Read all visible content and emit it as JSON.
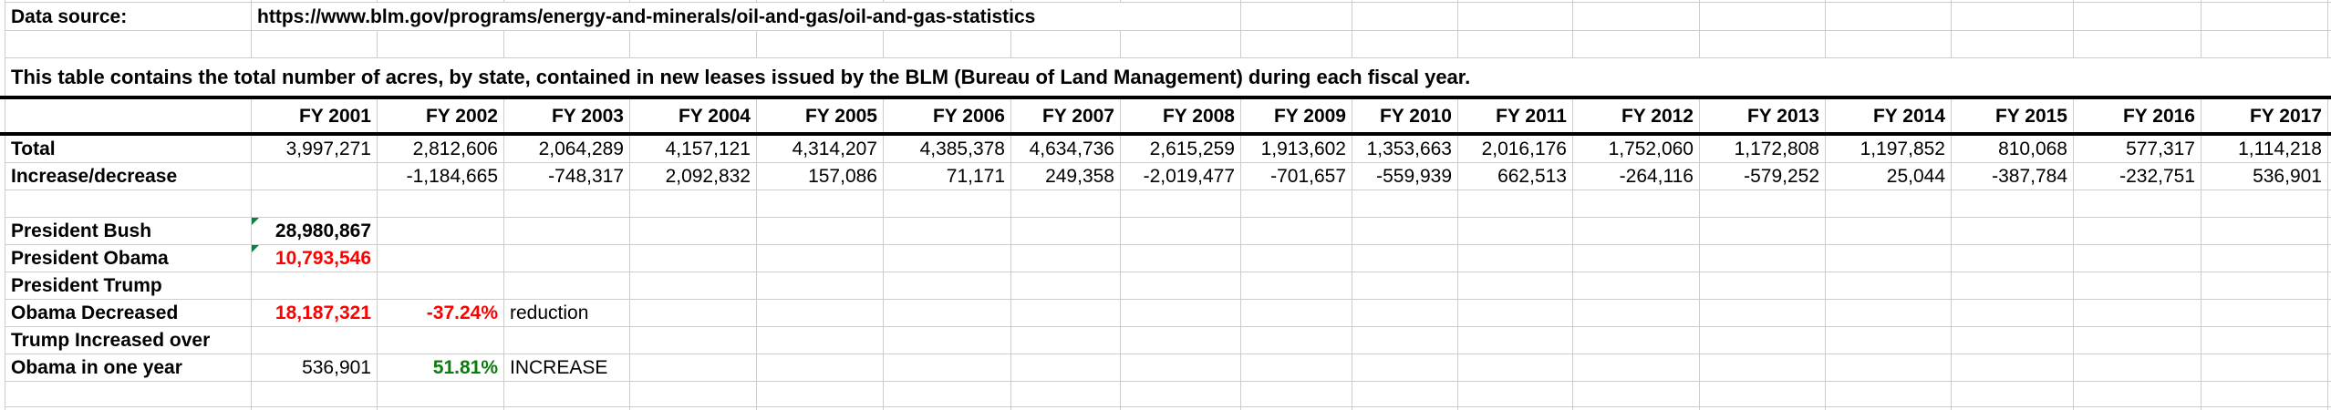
{
  "header": {
    "data_source_label": "Data source:",
    "data_source_url": "https://www.blm.gov/programs/energy-and-minerals/oil-and-gas/oil-and-gas-statistics"
  },
  "description": "This table contains the total number of acres, by state, contained in new leases issued by the BLM (Bureau of Land Management) during each fiscal year.",
  "table": {
    "years": [
      "FY 2001",
      "FY 2002",
      "FY 2003",
      "FY 2004",
      "FY 2005",
      "FY 2006",
      "FY 2007",
      "FY 2008",
      "FY 2009",
      "FY 2010",
      "FY 2011",
      "FY 2012",
      "FY 2013",
      "FY 2014",
      "FY 2015",
      "FY 2016",
      "FY 2017"
    ],
    "rows": [
      {
        "label": "Total",
        "values": [
          "3,997,271",
          "2,812,606",
          "2,064,289",
          "4,157,121",
          "4,314,207",
          "4,385,378",
          "4,634,736",
          "2,615,259",
          "1,913,602",
          "1,353,663",
          "2,016,176",
          "1,752,060",
          "1,172,808",
          "1,197,852",
          "810,068",
          "577,317",
          "1,114,218"
        ]
      },
      {
        "label": "Increase/decrease",
        "values": [
          "",
          "-1,184,665",
          "-748,317",
          "2,092,832",
          "157,086",
          "71,171",
          "249,358",
          "-2,019,477",
          "-701,657",
          "-559,939",
          "662,513",
          "-264,116",
          "-579,252",
          "25,044",
          "-387,784",
          "-232,751",
          "536,901"
        ]
      }
    ]
  },
  "summary": [
    {
      "label": "President Bush",
      "value": "28,980,867",
      "value_color": "black",
      "value_bold": true,
      "flag": true,
      "pct": "",
      "pct_color": "",
      "pct_bold": false,
      "note": ""
    },
    {
      "label": "President Obama",
      "value": "10,793,546",
      "value_color": "red",
      "value_bold": true,
      "flag": true,
      "pct": "",
      "pct_color": "",
      "pct_bold": false,
      "note": ""
    },
    {
      "label": "President Trump",
      "value": "",
      "value_color": "black",
      "value_bold": false,
      "flag": false,
      "pct": "",
      "pct_color": "",
      "pct_bold": false,
      "note": ""
    },
    {
      "label": "Obama Decreased",
      "value": "18,187,321",
      "value_color": "red",
      "value_bold": true,
      "flag": false,
      "pct": "-37.24%",
      "pct_color": "red",
      "pct_bold": true,
      "note": "reduction"
    },
    {
      "label": "Trump Increased over",
      "value": "",
      "value_color": "black",
      "value_bold": false,
      "flag": false,
      "pct": "",
      "pct_color": "",
      "pct_bold": false,
      "note": ""
    },
    {
      "label": "Obama in one year",
      "value": "536,901",
      "value_color": "black",
      "value_bold": false,
      "flag": false,
      "pct": "51.81%",
      "pct_color": "green",
      "pct_bold": true,
      "note": "INCREASE"
    }
  ],
  "colors": {
    "red": "#ff0000",
    "green": "#0b7d0b",
    "flag_green": "#0b8043",
    "gridline": "#cdcdcd",
    "table_border": "#000000"
  }
}
